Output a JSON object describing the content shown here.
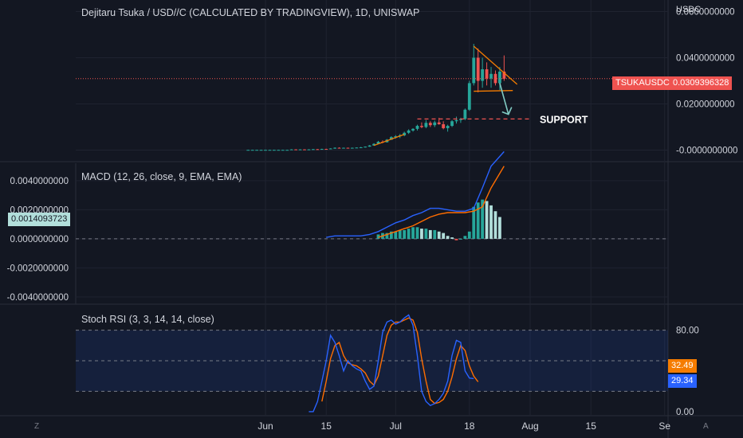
{
  "header": {
    "title": "Dejitaru Tsuka / USD//C (CALCULATED BY TRADINGVIEW), 1D, UNISWAP",
    "unit": "USDC"
  },
  "price_badges": {
    "symbol": "TSUKAUSDC",
    "last_price": "0.0309396328"
  },
  "macd_badge": "0.0014093723",
  "stoch_badges": {
    "k": "32.49",
    "d": "29.34"
  },
  "annotation": {
    "support_label": "SUPPORT"
  },
  "corners": {
    "left": "Z",
    "right": "A"
  },
  "colors": {
    "background": "#131722",
    "up": "#26a69a",
    "down": "#ef5350",
    "macd_line": "#2962ff",
    "signal_line": "#ff6d00",
    "drawing": "#f57c00",
    "arrow": "#80cbc4",
    "hist_strong": "#26a69a",
    "hist_weak": "#b2dfdb"
  },
  "chart_data": [
    {
      "type": "candlestick",
      "pane": "price",
      "title": "Dejitaru Tsuka / USD//C (CALCULATED BY TRADINGVIEW), 1D, UNISWAP",
      "ylim": [
        -0.005,
        0.065
      ],
      "y_ticks": [
        "0.0600000000",
        "0.0400000000",
        "0.0200000000",
        "-0.0000000000"
      ],
      "y_tick_values": [
        0.06,
        0.04,
        0.02,
        0.0
      ],
      "x_ticks": [
        "Jun",
        "15",
        "Jul",
        "18",
        "Aug",
        "15",
        "Se"
      ],
      "x_tick_dates": [
        "2022-06-01",
        "2022-06-15",
        "2022-07-01",
        "2022-07-18",
        "2022-08-01",
        "2022-08-15",
        "2022-09-01"
      ],
      "candles": [
        [
          "2022-05-28",
          0.0001,
          0.0002,
          0.0001,
          0.0001
        ],
        [
          "2022-05-29",
          0.0001,
          0.0002,
          0.0001,
          0.0001
        ],
        [
          "2022-05-30",
          0.0001,
          0.0002,
          0.0001,
          0.0001
        ],
        [
          "2022-05-31",
          0.0001,
          0.0002,
          0.0001,
          0.0001
        ],
        [
          "2022-06-01",
          0.0001,
          0.0002,
          0.0001,
          0.0001
        ],
        [
          "2022-06-02",
          0.0001,
          0.0002,
          0.0001,
          0.0001
        ],
        [
          "2022-06-03",
          0.0001,
          0.0002,
          0.0001,
          0.0001
        ],
        [
          "2022-06-04",
          0.0001,
          0.0002,
          0.0001,
          0.0001
        ],
        [
          "2022-06-05",
          0.0001,
          0.0002,
          0.0001,
          0.0001
        ],
        [
          "2022-06-06",
          0.0001,
          0.0002,
          0.0001,
          0.0001
        ],
        [
          "2022-06-07",
          0.0002,
          0.0004,
          0.0001,
          0.0003
        ],
        [
          "2022-06-08",
          0.0003,
          0.0004,
          0.0002,
          0.0002
        ],
        [
          "2022-06-09",
          0.0002,
          0.0004,
          0.0002,
          0.0003
        ],
        [
          "2022-06-10",
          0.0003,
          0.0004,
          0.0002,
          0.0002
        ],
        [
          "2022-06-11",
          0.0002,
          0.0004,
          0.0002,
          0.0003
        ],
        [
          "2022-06-12",
          0.0003,
          0.0005,
          0.0002,
          0.0004
        ],
        [
          "2022-06-13",
          0.0004,
          0.0005,
          0.0002,
          0.0003
        ],
        [
          "2022-06-14",
          0.0003,
          0.0006,
          0.0003,
          0.0005
        ],
        [
          "2022-06-15",
          0.0005,
          0.0006,
          0.0003,
          0.0004
        ],
        [
          "2022-06-16",
          0.0004,
          0.0008,
          0.0004,
          0.0007
        ],
        [
          "2022-06-17",
          0.0007,
          0.0012,
          0.0006,
          0.001
        ],
        [
          "2022-06-18",
          0.001,
          0.0012,
          0.0007,
          0.0008
        ],
        [
          "2022-06-19",
          0.0008,
          0.0011,
          0.0007,
          0.001
        ],
        [
          "2022-06-20",
          0.001,
          0.0011,
          0.0008,
          0.0009
        ],
        [
          "2022-06-21",
          0.0009,
          0.0011,
          0.0008,
          0.001
        ],
        [
          "2022-06-22",
          0.001,
          0.0012,
          0.0009,
          0.0011
        ],
        [
          "2022-06-23",
          0.0011,
          0.0014,
          0.0009,
          0.0012
        ],
        [
          "2022-06-24",
          0.0012,
          0.0016,
          0.0011,
          0.0015
        ],
        [
          "2022-06-25",
          0.0015,
          0.0022,
          0.0014,
          0.002
        ],
        [
          "2022-06-26",
          0.002,
          0.003,
          0.0019,
          0.0027
        ],
        [
          "2022-06-27",
          0.0027,
          0.004,
          0.0026,
          0.0036
        ],
        [
          "2022-06-28",
          0.0036,
          0.0042,
          0.003,
          0.0034
        ],
        [
          "2022-06-29",
          0.0034,
          0.0048,
          0.0033,
          0.0045
        ],
        [
          "2022-06-30",
          0.0045,
          0.006,
          0.0044,
          0.0056
        ],
        [
          "2022-07-01",
          0.0056,
          0.0065,
          0.005,
          0.006
        ],
        [
          "2022-07-02",
          0.006,
          0.007,
          0.0052,
          0.0064
        ],
        [
          "2022-07-03",
          0.0064,
          0.008,
          0.006,
          0.0075
        ],
        [
          "2022-07-04",
          0.0075,
          0.009,
          0.007,
          0.0085
        ],
        [
          "2022-07-05",
          0.0085,
          0.0095,
          0.008,
          0.0092
        ],
        [
          "2022-07-06",
          0.0092,
          0.011,
          0.0085,
          0.0105
        ],
        [
          "2022-07-07",
          0.0105,
          0.012,
          0.0095,
          0.01
        ],
        [
          "2022-07-08",
          0.01,
          0.013,
          0.0095,
          0.0118
        ],
        [
          "2022-07-09",
          0.0118,
          0.0125,
          0.01,
          0.0108
        ],
        [
          "2022-07-10",
          0.0108,
          0.0128,
          0.01,
          0.012
        ],
        [
          "2022-07-11",
          0.012,
          0.014,
          0.011,
          0.0112
        ],
        [
          "2022-07-12",
          0.0112,
          0.0125,
          0.009,
          0.0095
        ],
        [
          "2022-07-13",
          0.0095,
          0.011,
          0.008,
          0.0105
        ],
        [
          "2022-07-14",
          0.0105,
          0.013,
          0.01,
          0.0125
        ],
        [
          "2022-07-15",
          0.0125,
          0.0145,
          0.0115,
          0.013
        ],
        [
          "2022-07-16",
          0.013,
          0.014,
          0.0118,
          0.0135
        ],
        [
          "2022-07-17",
          0.0135,
          0.018,
          0.013,
          0.0175
        ],
        [
          "2022-07-18",
          0.0175,
          0.03,
          0.017,
          0.029
        ],
        [
          "2022-07-19",
          0.029,
          0.046,
          0.028,
          0.04
        ],
        [
          "2022-07-20",
          0.04,
          0.044,
          0.025,
          0.03
        ],
        [
          "2022-07-21",
          0.03,
          0.04,
          0.027,
          0.035
        ],
        [
          "2022-07-22",
          0.035,
          0.038,
          0.028,
          0.031
        ],
        [
          "2022-07-23",
          0.031,
          0.036,
          0.027,
          0.033
        ],
        [
          "2022-07-24",
          0.033,
          0.0345,
          0.028,
          0.029
        ],
        [
          "2022-07-25",
          0.029,
          0.036,
          0.026,
          0.034
        ],
        [
          "2022-07-26",
          0.034,
          0.041,
          0.03,
          0.0309
        ]
      ],
      "drawings": {
        "resistance_line": {
          "from": [
            "2022-07-19",
            0.045
          ],
          "to": [
            "2022-07-29",
            0.0285
          ]
        },
        "support_line": {
          "from": [
            "2022-07-19",
            0.0255
          ],
          "to": [
            "2022-07-28",
            0.0258
          ]
        },
        "support_level": {
          "from": [
            "2022-07-06",
            0.0135
          ],
          "to": [
            "2022-08-01",
            0.0135
          ],
          "label": "SUPPORT"
        },
        "early_trendline": {
          "from": [
            "2022-06-26",
            0.002
          ],
          "to": [
            "2022-07-03",
            0.0068
          ]
        },
        "arrow": {
          "from": [
            "2022-07-25",
            0.029
          ],
          "to": [
            "2022-07-27",
            0.0155
          ]
        },
        "last_price_line": 0.0309396328
      }
    },
    {
      "type": "macd",
      "pane": "macd",
      "title": "MACD (12, 26, close, 9, EMA, EMA)",
      "ylim": [
        -0.0045,
        0.0052
      ],
      "y_ticks": [
        "0.0040000000",
        "0.0020000000",
        "0.0000000000",
        "-0.0020000000",
        "-0.0040000000"
      ],
      "y_tick_values": [
        0.004,
        0.002,
        0.0,
        -0.002,
        -0.004
      ],
      "x": [
        "2022-06-15",
        "2022-06-17",
        "2022-06-19",
        "2022-06-21",
        "2022-06-23",
        "2022-06-25",
        "2022-06-27",
        "2022-06-29",
        "2022-07-01",
        "2022-07-03",
        "2022-07-05",
        "2022-07-07",
        "2022-07-09",
        "2022-07-11",
        "2022-07-13",
        "2022-07-15",
        "2022-07-17",
        "2022-07-19",
        "2022-07-21",
        "2022-07-23",
        "2022-07-26"
      ],
      "macd": [
        0.0001,
        0.0002,
        0.0002,
        0.0002,
        0.0002,
        0.0003,
        0.0005,
        0.0008,
        0.0011,
        0.0013,
        0.0016,
        0.0018,
        0.0021,
        0.0021,
        0.002,
        0.0019,
        0.0019,
        0.0021,
        0.0035,
        0.005,
        0.006
      ],
      "signal": [
        null,
        null,
        null,
        null,
        null,
        null,
        0.0001,
        0.0003,
        0.0005,
        0.0007,
        0.0009,
        0.0012,
        0.0015,
        0.0017,
        0.0018,
        0.0018,
        0.0018,
        0.0019,
        0.0022,
        0.0035,
        0.005
      ],
      "hist_dates": [
        "2022-06-27",
        "2022-06-28",
        "2022-06-29",
        "2022-06-30",
        "2022-07-01",
        "2022-07-02",
        "2022-07-03",
        "2022-07-04",
        "2022-07-05",
        "2022-07-06",
        "2022-07-07",
        "2022-07-08",
        "2022-07-09",
        "2022-07-10",
        "2022-07-11",
        "2022-07-12",
        "2022-07-13",
        "2022-07-14",
        "2022-07-15",
        "2022-07-16",
        "2022-07-17",
        "2022-07-18",
        "2022-07-19",
        "2022-07-20",
        "2022-07-21",
        "2022-07-22",
        "2022-07-23",
        "2022-07-24",
        "2022-07-25"
      ],
      "histogram": [
        0.0003,
        0.0004,
        0.0004,
        0.0005,
        0.0005,
        0.0006,
        0.0006,
        0.0007,
        0.0008,
        0.0008,
        0.0007,
        0.0007,
        0.0006,
        0.0006,
        0.0005,
        0.0004,
        0.0002,
        0.0001,
        -0.0001,
        0.0,
        0.0002,
        0.0005,
        0.0022,
        0.0025,
        0.0027,
        0.0026,
        0.0023,
        0.0019,
        0.0015
      ],
      "current_value": "0.0014093723"
    },
    {
      "type": "line",
      "pane": "stoch_rsi",
      "title": "Stoch RSI (3, 3, 14, 14, close)",
      "ylim": [
        -4,
        104
      ],
      "y_ticks": [
        "80.00",
        "0.00"
      ],
      "y_tick_values": [
        80,
        0
      ],
      "band": [
        20,
        80
      ],
      "x": [
        "2022-06-11",
        "2022-06-12",
        "2022-06-13",
        "2022-06-14",
        "2022-06-15",
        "2022-06-16",
        "2022-06-17",
        "2022-06-18",
        "2022-06-19",
        "2022-06-20",
        "2022-06-21",
        "2022-06-22",
        "2022-06-23",
        "2022-06-24",
        "2022-06-25",
        "2022-06-26",
        "2022-06-27",
        "2022-06-28",
        "2022-06-29",
        "2022-06-30",
        "2022-07-01",
        "2022-07-02",
        "2022-07-03",
        "2022-07-04",
        "2022-07-05",
        "2022-07-06",
        "2022-07-07",
        "2022-07-08",
        "2022-07-09",
        "2022-07-10",
        "2022-07-11",
        "2022-07-12",
        "2022-07-13",
        "2022-07-14",
        "2022-07-15",
        "2022-07-16",
        "2022-07-17",
        "2022-07-18",
        "2022-07-19",
        "2022-07-20",
        "2022-07-21",
        "2022-07-22",
        "2022-07-23",
        "2022-07-24",
        "2022-07-25",
        "2022-07-26"
      ],
      "series": [
        {
          "name": "K",
          "values": [
            0,
            0,
            10,
            30,
            50,
            75,
            68,
            55,
            40,
            50,
            45,
            42,
            40,
            30,
            22,
            25,
            50,
            78,
            88,
            90,
            86,
            88,
            92,
            95,
            85,
            55,
            20,
            10,
            6,
            8,
            12,
            18,
            30,
            55,
            70,
            68,
            40,
            33,
            32.49,
            null,
            null,
            null,
            null,
            null,
            null,
            null
          ]
        },
        {
          "name": "D",
          "values": [
            null,
            null,
            null,
            10,
            30,
            52,
            65,
            68,
            55,
            48,
            46,
            45,
            42,
            38,
            30,
            26,
            35,
            55,
            75,
            85,
            88,
            88,
            90,
            92,
            90,
            78,
            52,
            30,
            12,
            8,
            9,
            12,
            20,
            34,
            52,
            65,
            60,
            45,
            35,
            29.34,
            null,
            null,
            null,
            null,
            null,
            null
          ]
        }
      ],
      "current_k": "32.49",
      "current_d": "29.34"
    }
  ]
}
